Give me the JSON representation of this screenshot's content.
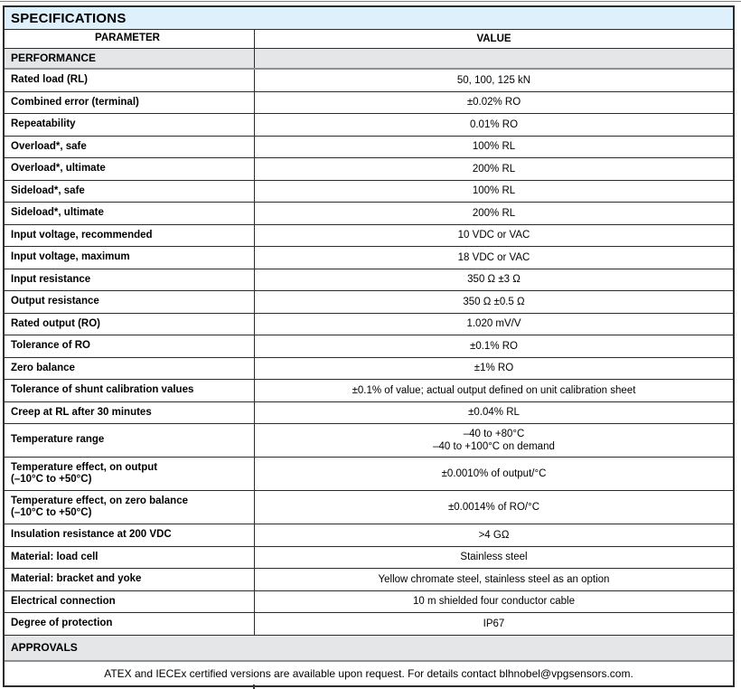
{
  "colors": {
    "title_bg": "#def0fb",
    "section_bg": "#e5e6e8",
    "border_dark": "#2c2c2c",
    "border_gray": "#8f8f8f",
    "text": "#000000"
  },
  "table": {
    "title": "SPECIFICATIONS",
    "columns": {
      "parameter": "PARAMETER",
      "value": "VALUE"
    },
    "sections": {
      "performance": "PERFORMANCE",
      "approvals": "APPROVALS"
    },
    "rows": [
      {
        "param": "Rated load (RL)",
        "value": "50, 100, 125 kN"
      },
      {
        "param": "Combined error (terminal)",
        "value": "±0.02% RO"
      },
      {
        "param": "Repeatability",
        "value": "0.01% RO"
      },
      {
        "param": "Overload*, safe",
        "value": "100% RL"
      },
      {
        "param": "Overload*, ultimate",
        "value": "200% RL"
      },
      {
        "param": "Sideload*, safe",
        "value": "100% RL"
      },
      {
        "param": "Sideload*, ultimate",
        "value": "200% RL"
      },
      {
        "param": "Input voltage, recommended",
        "value": "10 VDC or VAC"
      },
      {
        "param": "Input voltage, maximum",
        "value": "18 VDC or VAC"
      },
      {
        "param": "Input resistance",
        "value": "350 Ω ±3 Ω"
      },
      {
        "param": "Output resistance",
        "value": "350 Ω ±0.5 Ω"
      },
      {
        "param": "Rated output (RO)",
        "value": "1.020 mV/V"
      },
      {
        "param": "Tolerance of RO",
        "value": "±0.1% RO"
      },
      {
        "param": "Zero balance",
        "value": "±1% RO"
      },
      {
        "param": "Tolerance of shunt calibration values",
        "value": "±0.1% of value; actual output defined on unit calibration sheet"
      },
      {
        "param": "Creep at RL after 30 minutes",
        "value": "±0.04% RL"
      },
      {
        "param": "Temperature range",
        "value": "–40 to +80°C",
        "value2": "–40 to +100°C on demand"
      },
      {
        "param": "Temperature effect, on output",
        "param2": "(–10°C to +50°C)",
        "value": "±0.0010% of output/°C"
      },
      {
        "param": "Temperature effect, on zero balance",
        "param2": "(–10°C to +50°C)",
        "value": "±0.0014% of RO/°C"
      },
      {
        "param": "Insulation resistance at 200 VDC",
        "value": ">4 GΩ"
      },
      {
        "param": "Material: load cell",
        "value": "Stainless steel"
      },
      {
        "param": "Material: bracket and yoke",
        "value": "Yellow chromate steel, stainless steel as an option"
      },
      {
        "param": "Electrical connection",
        "value": "10 m shielded four conductor cable"
      },
      {
        "param": "Degree of protection",
        "value": "IP67"
      }
    ],
    "footer": "ATEX and IECEx certified versions are available upon request. For details contact blhnobel@vpgsensors.com."
  }
}
